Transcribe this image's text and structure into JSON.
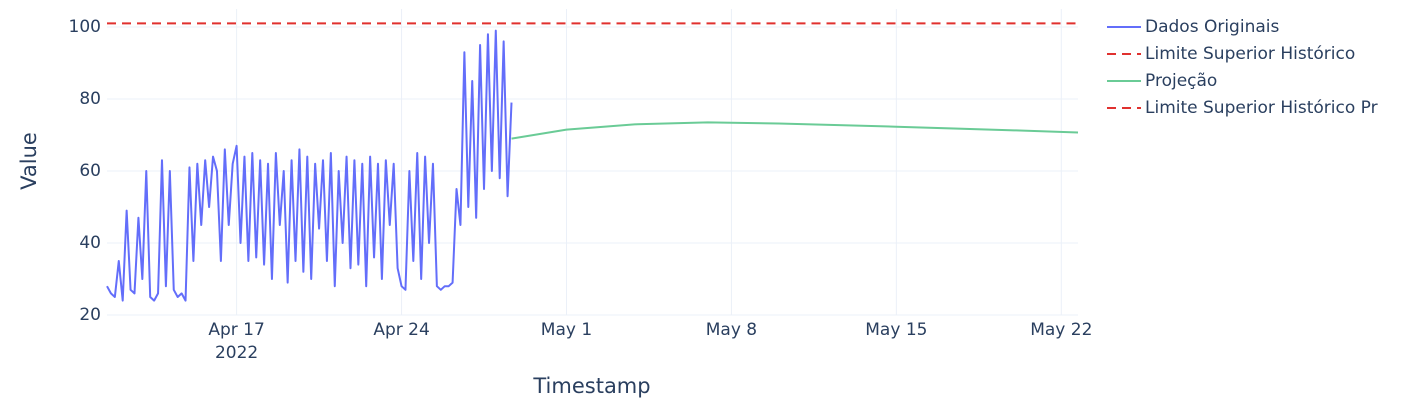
{
  "chart_data": {
    "type": "line",
    "xlabel": "Timestamp",
    "ylabel": "Value",
    "xlim": [
      "2022-04-11T12:00",
      "2022-05-22T17:00"
    ],
    "ylim": [
      20,
      105
    ],
    "yticks": [
      20,
      40,
      60,
      80,
      100
    ],
    "xticks": [
      {
        "value": "2022-04-17T00:00",
        "label": "Apr 17",
        "year": "2022"
      },
      {
        "value": "2022-04-24T00:00",
        "label": "Apr 24"
      },
      {
        "value": "2022-05-01T00:00",
        "label": "May 1"
      },
      {
        "value": "2022-05-08T00:00",
        "label": "May 8"
      },
      {
        "value": "2022-05-15T00:00",
        "label": "May 15"
      },
      {
        "value": "2022-05-22T00:00",
        "label": "May 22"
      }
    ],
    "grid": true,
    "legend": "right",
    "series": [
      {
        "name": "Dados Originais",
        "color": "#636efa",
        "dash": "solid",
        "start": "2022-04-11T12:00",
        "step_hours": 4,
        "values": [
          28,
          26,
          25,
          35,
          24,
          49,
          27,
          26,
          47,
          30,
          60,
          25,
          24,
          26,
          63,
          28,
          60,
          27,
          25,
          26,
          24,
          61,
          35,
          62,
          45,
          63,
          50,
          64,
          60,
          35,
          66,
          45,
          62,
          67,
          40,
          64,
          35,
          65,
          36,
          63,
          34,
          62,
          30,
          65,
          45,
          60,
          29,
          63,
          35,
          66,
          32,
          64,
          30,
          62,
          44,
          63,
          35,
          65,
          28,
          60,
          40,
          64,
          33,
          63,
          34,
          62,
          28,
          64,
          36,
          62,
          30,
          63,
          45,
          62,
          33,
          28,
          27,
          60,
          35,
          65,
          30,
          64,
          40,
          62,
          28,
          27,
          28,
          28,
          29,
          55,
          45,
          93,
          50,
          85,
          47,
          95,
          55,
          98,
          60,
          99,
          58,
          96,
          53,
          79
        ]
      },
      {
        "name": "Limite Superior Histórico",
        "color": "#e0312f",
        "dash": "dash",
        "x": [
          "2022-04-11T12:00",
          "2022-04-28T16:00"
        ],
        "values": [
          101,
          101
        ]
      },
      {
        "name": "Projeção",
        "color": "#6acb96",
        "dash": "solid",
        "x": [
          "2022-04-28T16:00",
          "2022-05-01T00:00",
          "2022-05-04T00:00",
          "2022-05-07T00:00",
          "2022-05-10T00:00",
          "2022-05-15T00:00",
          "2022-05-20T00:00",
          "2022-05-22T17:00"
        ],
        "values": [
          69,
          71.5,
          73,
          73.5,
          73.2,
          72.3,
          71.3,
          70.7
        ]
      },
      {
        "name": "Limite Superior Histórico Pr",
        "color": "#e0312f",
        "dash": "dash",
        "x": [
          "2022-04-28T16:00",
          "2022-05-22T17:00"
        ],
        "values": [
          101,
          101
        ]
      }
    ]
  }
}
